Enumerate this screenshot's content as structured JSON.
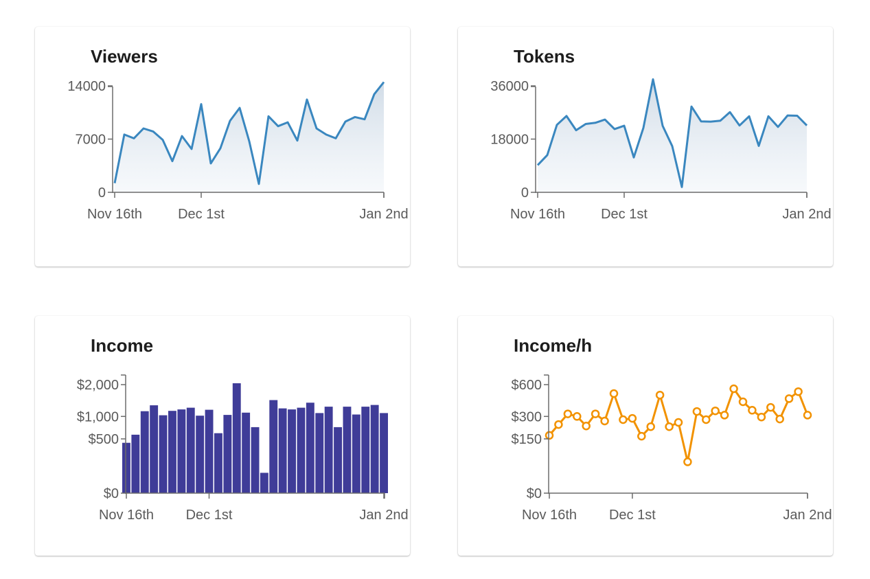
{
  "charts": {
    "viewers": {
      "title": "Viewers",
      "color": "#3a87bf",
      "chart_data": {
        "type": "area",
        "title": "Viewers",
        "xlabel": "",
        "ylabel": "",
        "x_ticks": [
          "Nov 16th",
          "Dec 1st",
          "Jan 2nd"
        ],
        "x_tick_index": [
          0,
          9,
          28
        ],
        "y_ticks": [
          0,
          7000,
          14000
        ],
        "y_tick_labels": [
          "0",
          "7000",
          "14000"
        ],
        "ylim": [
          0,
          14000
        ],
        "grid": false,
        "values": [
          1200,
          7600,
          7100,
          8400,
          8000,
          6900,
          4100,
          7400,
          5700,
          11600,
          3800,
          5800,
          9400,
          11100,
          6700,
          1100,
          10000,
          8700,
          9200,
          6800,
          12200,
          8400,
          7600,
          7100,
          9300,
          9900,
          9600,
          12900,
          14500
        ]
      }
    },
    "tokens": {
      "title": "Tokens",
      "color": "#3a87bf",
      "chart_data": {
        "type": "area",
        "title": "Tokens",
        "xlabel": "",
        "ylabel": "",
        "x_ticks": [
          "Nov 16th",
          "Dec 1st",
          "Jan 2nd"
        ],
        "x_tick_index": [
          0,
          9,
          28
        ],
        "y_ticks": [
          0,
          18000,
          36000
        ],
        "y_tick_labels": [
          "0",
          "18000",
          "36000"
        ],
        "ylim": [
          0,
          36000
        ],
        "grid": false,
        "values": [
          9200,
          12600,
          22800,
          25800,
          21000,
          23100,
          23500,
          24600,
          21400,
          22500,
          11800,
          21800,
          38200,
          22500,
          15600,
          1800,
          29000,
          24000,
          23900,
          24200,
          27100,
          22600,
          25700,
          15700,
          25700,
          22100,
          26000,
          25900,
          22600
        ]
      }
    },
    "income": {
      "title": "Income",
      "color": "#3f3c98",
      "chart_data": {
        "type": "bar",
        "title": "Income",
        "xlabel": "",
        "ylabel": "",
        "scale": "sqrt",
        "x_ticks": [
          "Nov 16th",
          "Dec 1st",
          "Jan 2nd"
        ],
        "x_tick_index": [
          0,
          9,
          28
        ],
        "y_ticks": [
          0,
          500,
          1000,
          2000
        ],
        "y_tick_labels": [
          "$0",
          "$500",
          "$1,000",
          "$2,000"
        ],
        "ylim": [
          0,
          2000
        ],
        "grid": false,
        "values": [
          430,
          580,
          1140,
          1310,
          1030,
          1150,
          1190,
          1240,
          1020,
          1180,
          610,
          1040,
          2050,
          1100,
          740,
          70,
          1470,
          1220,
          1190,
          1240,
          1390,
          1090,
          1270,
          740,
          1270,
          1050,
          1270,
          1320,
          1090
        ]
      }
    },
    "incomeh": {
      "title": "Income/h",
      "color": "#f29200",
      "chart_data": {
        "type": "line",
        "title": "Income/h",
        "xlabel": "",
        "ylabel": "",
        "scale": "sqrt",
        "markers": true,
        "x_ticks": [
          "Nov 16th",
          "Dec 1st",
          "Jan 2nd"
        ],
        "x_tick_index": [
          0,
          9,
          28
        ],
        "y_ticks": [
          0,
          150,
          300,
          600
        ],
        "y_tick_labels": [
          "$0",
          "$150",
          "$300",
          "$600"
        ],
        "ylim": [
          0,
          600
        ],
        "grid": false,
        "values": [
          170,
          240,
          320,
          300,
          230,
          320,
          265,
          505,
          275,
          285,
          165,
          225,
          490,
          225,
          255,
          50,
          340,
          275,
          345,
          310,
          555,
          425,
          350,
          295,
          375,
          280,
          455,
          525,
          310
        ]
      }
    }
  }
}
